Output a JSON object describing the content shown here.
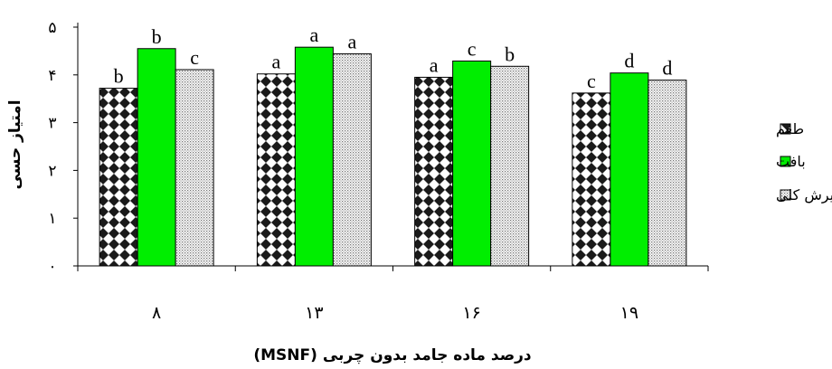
{
  "chart_data": {
    "type": "bar",
    "categories": [
      "۸",
      "۱۳",
      "۱۶",
      "۱۹"
    ],
    "series": [
      {
        "name": "طعم",
        "values": [
          3.72,
          4.02,
          3.95,
          3.62
        ],
        "letters": [
          "b",
          "a",
          "a",
          "c"
        ],
        "pattern": "checker"
      },
      {
        "name": "بافت",
        "values": [
          4.55,
          4.58,
          4.29,
          4.04
        ],
        "letters": [
          "b",
          "a",
          "c",
          "d"
        ],
        "pattern": "green",
        "color": "#00ee00"
      },
      {
        "name": "پذیرش کلی",
        "values": [
          4.11,
          4.44,
          4.18,
          3.89
        ],
        "letters": [
          "c",
          "a",
          "b",
          "d"
        ],
        "pattern": "dots"
      }
    ],
    "ylim": [
      0,
      5
    ],
    "yticks": [
      "۰",
      "۱",
      "۲",
      "۳",
      "۴",
      "۵"
    ],
    "ylabel": "امتیاز حسی",
    "xlabel": "درصد ماده جامد بدون چربی",
    "xlabel_suffix": "(MSNF)",
    "grid": false,
    "legend_position": "right"
  }
}
